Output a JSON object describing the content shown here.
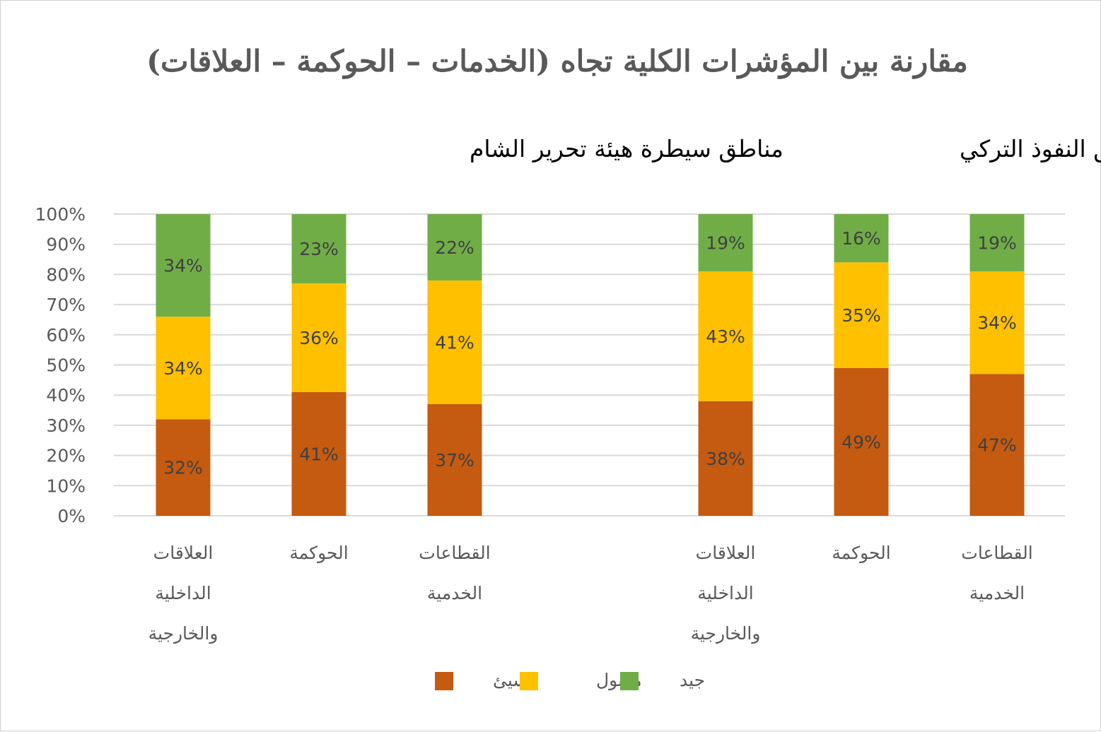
{
  "chart_data": {
    "type": "bar",
    "stacked": true,
    "percent": true,
    "title": "مقارنة بين المؤشرات الكلية تجاه (الخدمات – الحوكمة – العلاقات)",
    "groups": [
      {
        "name": "مناطق سيطرة هيئة تحرير الشام",
        "categories": [
          [
            "العلاقات",
            "الداخلية",
            "والخارجية"
          ],
          [
            "الحوكمة"
          ],
          [
            "القطاعات",
            "الخدمية"
          ]
        ],
        "series": [
          {
            "name": "سيئ",
            "values": [
              32,
              41,
              37
            ]
          },
          {
            "name": "مقبول",
            "values": [
              34,
              36,
              41
            ]
          },
          {
            "name": "جيد",
            "values": [
              34,
              23,
              22
            ]
          }
        ]
      },
      {
        "name": "مناطق النفوذ التركي",
        "categories": [
          [
            "العلاقات",
            "الداخلية",
            "والخارجية"
          ],
          [
            "الحوكمة"
          ],
          [
            "القطاعات",
            "الخدمية"
          ]
        ],
        "series": [
          {
            "name": "سيئ",
            "values": [
              38,
              49,
              47
            ]
          },
          {
            "name": "مقبول",
            "values": [
              43,
              35,
              34
            ]
          },
          {
            "name": "جيد",
            "values": [
              19,
              16,
              19
            ]
          }
        ]
      }
    ],
    "y_ticks": [
      "0%",
      "10%",
      "20%",
      "30%",
      "40%",
      "50%",
      "60%",
      "70%",
      "80%",
      "90%",
      "100%"
    ],
    "ylim": [
      0,
      100
    ],
    "grid": true,
    "legend": {
      "placement": "bottom",
      "items": [
        {
          "name": "سيئ",
          "color": "#C55A11"
        },
        {
          "name": "مقبول",
          "color": "#FFC000"
        },
        {
          "name": "جيد",
          "color": "#70AD47"
        }
      ]
    },
    "colors": {
      "bad": "#C55A11",
      "acceptable": "#FFC000",
      "good": "#70AD47",
      "grid": "#d9d9d9"
    }
  }
}
